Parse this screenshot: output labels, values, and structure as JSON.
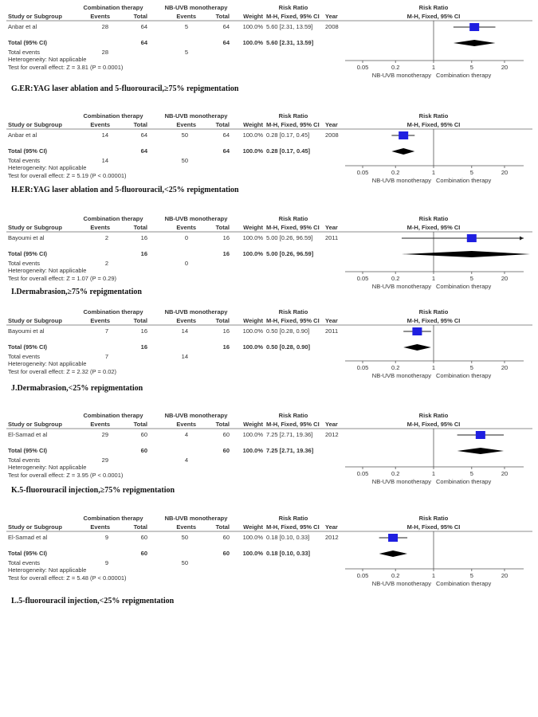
{
  "headers": {
    "group1": "Combination therapy",
    "group2": "NB-UVB monotherapy",
    "study": "Study or Subgroup",
    "events": "Events",
    "total": "Total",
    "weight": "Weight",
    "rr_title": "Risk Ratio",
    "rr_method": "M-H, Fixed, 95% CI",
    "year": "Year",
    "plot_title": "Risk Ratio",
    "plot_method": "M-H, Fixed, 95% CI",
    "total_row": "Total (95% CI)",
    "total_events": "Total events",
    "heterogeneity": "Heterogeneity: Not applicable",
    "favours_left": "NB-UVB monotherapy",
    "favours_right": "Combination therapy"
  },
  "colors": {
    "square": "#1f1fe0",
    "diamond": "#000000",
    "text": "#333333"
  },
  "chart_data": [
    {
      "type": "forest",
      "caption": "G.ER:YAG laser ablation and 5-fluorouracil,≥75% repigmentation",
      "study": "Anbar et al",
      "e1": 28,
      "n1": 64,
      "e2": 5,
      "n2": 64,
      "weight": "100.0%",
      "rr_text": "5.60 [2.31, 13.59]",
      "year": "2008",
      "rr": 5.6,
      "lo": 2.31,
      "hi": 13.59,
      "test": "Test for overall effect: Z = 3.81 (P = 0.0001)",
      "x_scale": "log",
      "x_ticks": [
        "0.05",
        "0.2",
        "1",
        "5",
        "20"
      ]
    },
    {
      "type": "forest",
      "caption": "H.ER:YAG laser ablation and 5-fluorouracil,<25% repigmentation",
      "study": "Anbar et al",
      "e1": 14,
      "n1": 64,
      "e2": 50,
      "n2": 64,
      "weight": "100.0%",
      "rr_text": "0.28 [0.17, 0.45]",
      "year": "2008",
      "rr": 0.28,
      "lo": 0.17,
      "hi": 0.45,
      "test": "Test for overall effect: Z = 5.19 (P < 0.00001)",
      "x_scale": "log",
      "x_ticks": [
        "0.05",
        "0.2",
        "1",
        "5",
        "20"
      ]
    },
    {
      "type": "forest",
      "caption": "I.Dermabrasion,≥75% repigmentation",
      "study": "Bayoumi et al",
      "e1": 2,
      "n1": 16,
      "e2": 0,
      "n2": 16,
      "weight": "100.0%",
      "rr_text": "5.00 [0.26, 96.59]",
      "year": "2011",
      "rr": 5.0,
      "lo": 0.26,
      "hi": 96.59,
      "test": "Test for overall effect: Z = 1.07 (P = 0.29)",
      "x_scale": "log",
      "x_ticks": [
        "0.05",
        "0.2",
        "1",
        "5",
        "20"
      ]
    },
    {
      "type": "forest",
      "caption": "J.Dermabrasion,<25% repigmentation",
      "study": "Bayoumi et al",
      "e1": 7,
      "n1": 16,
      "e2": 14,
      "n2": 16,
      "weight": "100.0%",
      "rr_text": "0.50 [0.28, 0.90]",
      "year": "2011",
      "rr": 0.5,
      "lo": 0.28,
      "hi": 0.9,
      "test": "Test for overall effect: Z = 2.32 (P = 0.02)",
      "x_scale": "log",
      "x_ticks": [
        "0.05",
        "0.2",
        "1",
        "5",
        "20"
      ]
    },
    {
      "type": "forest",
      "caption": "K.5-fluorouracil injection,≥75% repigmentation",
      "study": "El-Samad et al",
      "e1": 29,
      "n1": 60,
      "e2": 4,
      "n2": 60,
      "weight": "100.0%",
      "rr_text": "7.25 [2.71, 19.36]",
      "year": "2012",
      "rr": 7.25,
      "lo": 2.71,
      "hi": 19.36,
      "test": "Test for overall effect: Z = 3.95 (P < 0.0001)",
      "x_scale": "log",
      "x_ticks": [
        "0.05",
        "0.2",
        "1",
        "5",
        "20"
      ]
    },
    {
      "type": "forest",
      "caption": "L.5-fluorouracil injection,<25% repigmentation",
      "study": "El-Samad et al",
      "e1": 9,
      "n1": 60,
      "e2": 50,
      "n2": 60,
      "weight": "100.0%",
      "rr_text": "0.18 [0.10, 0.33]",
      "year": "2012",
      "rr": 0.18,
      "lo": 0.1,
      "hi": 0.33,
      "test": "Test for overall effect: Z = 5.48 (P < 0.00001)",
      "x_scale": "log",
      "x_ticks": [
        "0.05",
        "0.2",
        "1",
        "5",
        "20"
      ]
    }
  ]
}
